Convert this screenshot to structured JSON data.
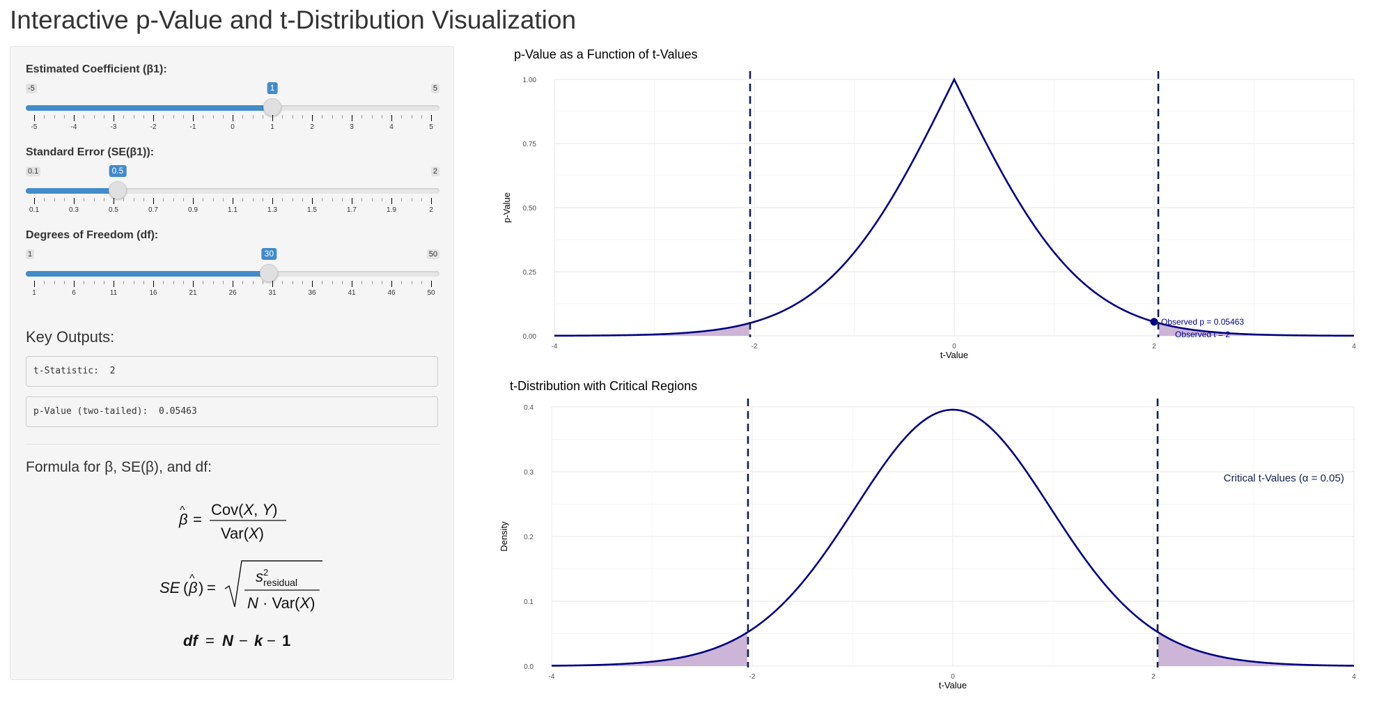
{
  "app": {
    "title": "Interactive p-Value and t-Distribution Visualization"
  },
  "sidebar": {
    "sliders": [
      {
        "label": "Estimated Coefficient (β1)",
        "min_label": "-5",
        "max_label": "5",
        "value_label": "1",
        "min": -5,
        "max": 5,
        "value": 1,
        "ticks": [
          "-5",
          "-4",
          "-3",
          "-2",
          "-1",
          "0",
          "1",
          "2",
          "3",
          "4",
          "5"
        ]
      },
      {
        "label": "Standard Error (SE(β1))",
        "min_label": "0.1",
        "max_label": "2",
        "value_label": "0.5",
        "min": 0.1,
        "max": 2,
        "value": 0.5,
        "ticks": [
          "0.1",
          "0.3",
          "0.5",
          "0.7",
          "0.9",
          "1.1",
          "1.3",
          "1.5",
          "1.7",
          "1.9",
          "2"
        ]
      },
      {
        "label": "Degrees of Freedom (df)",
        "min_label": "1",
        "max_label": "50",
        "value_label": "30",
        "min": 1,
        "max": 50,
        "value": 30,
        "ticks": [
          "1",
          "6",
          "11",
          "16",
          "21",
          "26",
          "31",
          "36",
          "41",
          "46",
          "50"
        ]
      }
    ],
    "key_outputs_title": "Key Outputs:",
    "t_statistic_text": "t-Statistic:  2",
    "p_value_text": "p-Value (two-tailed):  0.05463",
    "formula_title": "Formula for β, SE(β), and df:"
  },
  "colors": {
    "accent": "#428bca",
    "curve": "#000080",
    "shade": "#c3a8cf",
    "critical_line": "#0f1f4e"
  },
  "chart_data": [
    {
      "type": "line",
      "title": "p-Value as a Function of t-Values",
      "xlabel": "t-Value",
      "ylabel": "p-Value",
      "xlim": [
        -4,
        4
      ],
      "ylim": [
        0,
        1
      ],
      "xticks": [
        "-4",
        "-2",
        "0",
        "2",
        "4"
      ],
      "yticks": [
        "0.00",
        "0.25",
        "0.50",
        "0.75",
        "1.00"
      ],
      "series": [
        {
          "x": [
            -4,
            -3.5,
            -3,
            -2.5,
            -2.042,
            -1.5,
            -1,
            -0.5,
            0,
            0.5,
            1,
            1.5,
            2.042,
            2.5,
            3,
            3.5,
            4
          ],
          "y": [
            0.0004,
            0.0015,
            0.0054,
            0.018,
            0.05,
            0.144,
            0.325,
            0.621,
            1,
            0.621,
            0.325,
            0.144,
            0.05,
            0.018,
            0.0054,
            0.0015,
            0.0004
          ]
        }
      ],
      "critical_t": [
        -2.042,
        2.042
      ],
      "observed": {
        "t": 2,
        "p": 0.05463
      },
      "annotations": [
        "Observed p = 0.05463",
        "Observed t = 2"
      ],
      "grid": true
    },
    {
      "type": "area",
      "title": "t-Distribution with Critical Regions",
      "xlabel": "t-Value",
      "ylabel": "Density",
      "xlim": [
        -4,
        4
      ],
      "ylim": [
        0,
        0.4
      ],
      "xticks": [
        "-4",
        "-2",
        "0",
        "2",
        "4"
      ],
      "yticks": [
        "0.0",
        "0.1",
        "0.2",
        "0.3",
        "0.4"
      ],
      "series": [
        {
          "x": [
            -4,
            -3.5,
            -3,
            -2.5,
            -2.042,
            -1.5,
            -1,
            -0.5,
            0,
            0.5,
            1,
            1.5,
            2.042,
            2.5,
            3,
            3.5,
            4
          ],
          "y": [
            0.0011,
            0.0029,
            0.0069,
            0.019,
            0.0495,
            0.126,
            0.23,
            0.343,
            0.396,
            0.343,
            0.23,
            0.126,
            0.0495,
            0.019,
            0.0069,
            0.0029,
            0.0011
          ]
        }
      ],
      "critical_t": [
        -2.042,
        2.042
      ],
      "annotations": [
        "Critical t-Values (α = 0.05)"
      ],
      "grid": true
    }
  ]
}
